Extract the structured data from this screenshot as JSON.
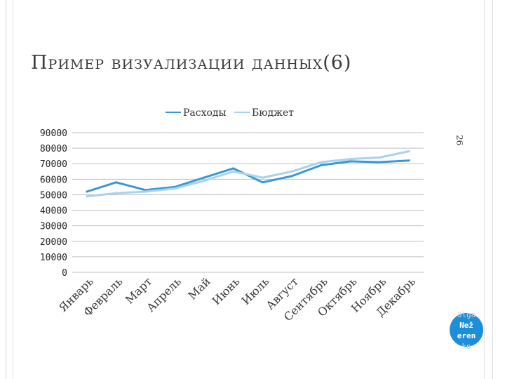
{
  "slide": {
    "title": "Пример визуализации данных(6)",
    "page_number": "26",
    "watermark": [
      "Olga",
      "Než",
      "eren",
      "ko"
    ]
  },
  "colors": {
    "expenses": "#3a98d4",
    "budget": "#a9d2ee",
    "grid": "#bfbfbf",
    "badge": "#1c8fd8"
  },
  "chart_data": {
    "type": "line",
    "categories": [
      "Январь",
      "Февраль",
      "Март",
      "Апрель",
      "Май",
      "Июнь",
      "Июль",
      "Август",
      "Сентябрь",
      "Октябрь",
      "Ноябрь",
      "Декабрь"
    ],
    "series": [
      {
        "name": "Расходы",
        "values": [
          52000,
          58000,
          53000,
          55000,
          61000,
          67000,
          58000,
          62000,
          69000,
          71500,
          71000,
          72000
        ]
      },
      {
        "name": "Бюджет",
        "values": [
          49000,
          51000,
          52000,
          54000,
          59000,
          65000,
          61000,
          65000,
          71000,
          73000,
          74000,
          78000
        ]
      }
    ],
    "yticks": [
      0,
      10000,
      20000,
      30000,
      40000,
      50000,
      60000,
      70000,
      80000,
      90000
    ],
    "ylim": [
      0,
      90000
    ],
    "grid": true,
    "legend": "top-center"
  }
}
